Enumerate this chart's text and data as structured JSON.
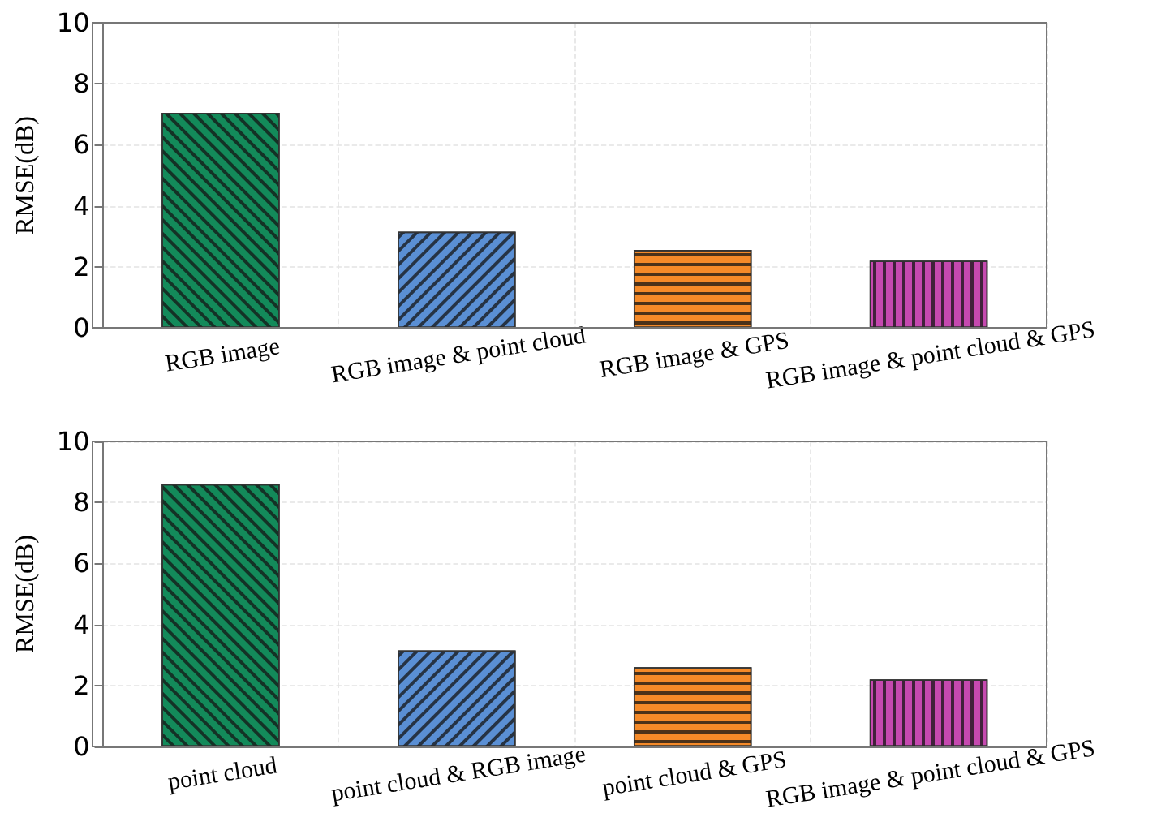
{
  "chart_data": [
    {
      "type": "bar",
      "ylabel": "RMSE(dB)",
      "categories": [
        "RGB image",
        "RGB image & point cloud",
        "RGB image & GPS",
        "RGB image & point cloud & GPS"
      ],
      "values": [
        7.05,
        3.15,
        2.55,
        2.2
      ],
      "colors": [
        "#138a5a",
        "#5a8fd4",
        "#f58a28",
        "#c649b0"
      ],
      "ylim": [
        0,
        10
      ],
      "yticks": [
        0,
        2,
        4,
        6,
        8,
        10
      ],
      "grid": true
    },
    {
      "type": "bar",
      "ylabel": "RMSE(dB)",
      "categories": [
        "point cloud",
        "point cloud & RGB image",
        "point cloud & GPS",
        "RGB image & point cloud & GPS"
      ],
      "values": [
        8.6,
        3.15,
        2.6,
        2.2
      ],
      "colors": [
        "#138a5a",
        "#5a8fd4",
        "#f58a28",
        "#c649b0"
      ],
      "ylim": [
        0,
        10
      ],
      "yticks": [
        0,
        2,
        4,
        6,
        8,
        10
      ],
      "grid": true
    }
  ]
}
